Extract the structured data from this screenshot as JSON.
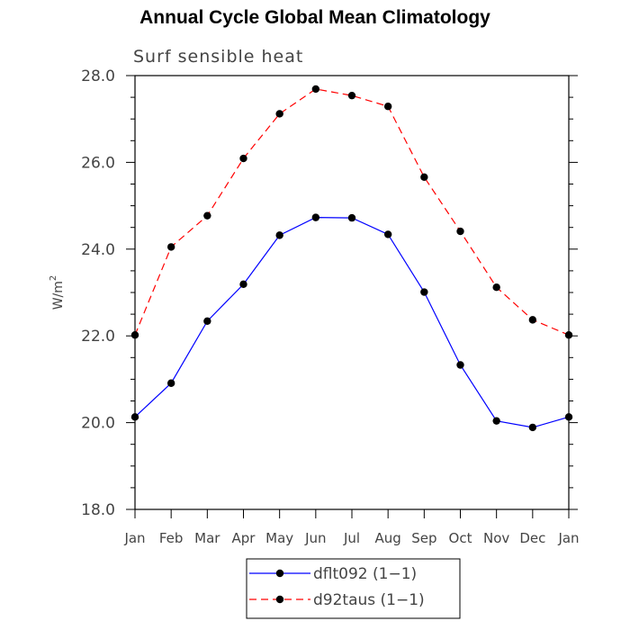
{
  "chart_data": {
    "type": "line",
    "title": "Annual Cycle Global Mean Climatology",
    "subtitle": "Surf sensible heat",
    "ylabel": "W/m",
    "ylabel_sup": "2",
    "xlabel": "",
    "categories": [
      "Jan",
      "Feb",
      "Mar",
      "Apr",
      "May",
      "Jun",
      "Jul",
      "Aug",
      "Sep",
      "Oct",
      "Nov",
      "Dec",
      "Jan"
    ],
    "ylim": [
      18.0,
      28.0
    ],
    "yticks": [
      "18.0",
      "20.0",
      "22.0",
      "24.0",
      "26.0",
      "28.0"
    ],
    "yticks_values": [
      18,
      20,
      22,
      24,
      26,
      28
    ],
    "grid": false,
    "legend_position": "bottom",
    "series": [
      {
        "name": "dflt092 (1−1)",
        "color": "#0000ff",
        "dash": "solid",
        "values": [
          20.13,
          20.91,
          22.34,
          23.19,
          24.32,
          24.73,
          24.72,
          24.34,
          23.01,
          21.33,
          20.04,
          19.89,
          20.13
        ]
      },
      {
        "name": "d92taus (1−1)",
        "color": "#ff0000",
        "dash": "dashed",
        "values": [
          22.02,
          24.05,
          24.77,
          26.09,
          27.12,
          27.69,
          27.54,
          27.29,
          25.66,
          24.41,
          23.12,
          22.37,
          22.02
        ]
      }
    ]
  }
}
